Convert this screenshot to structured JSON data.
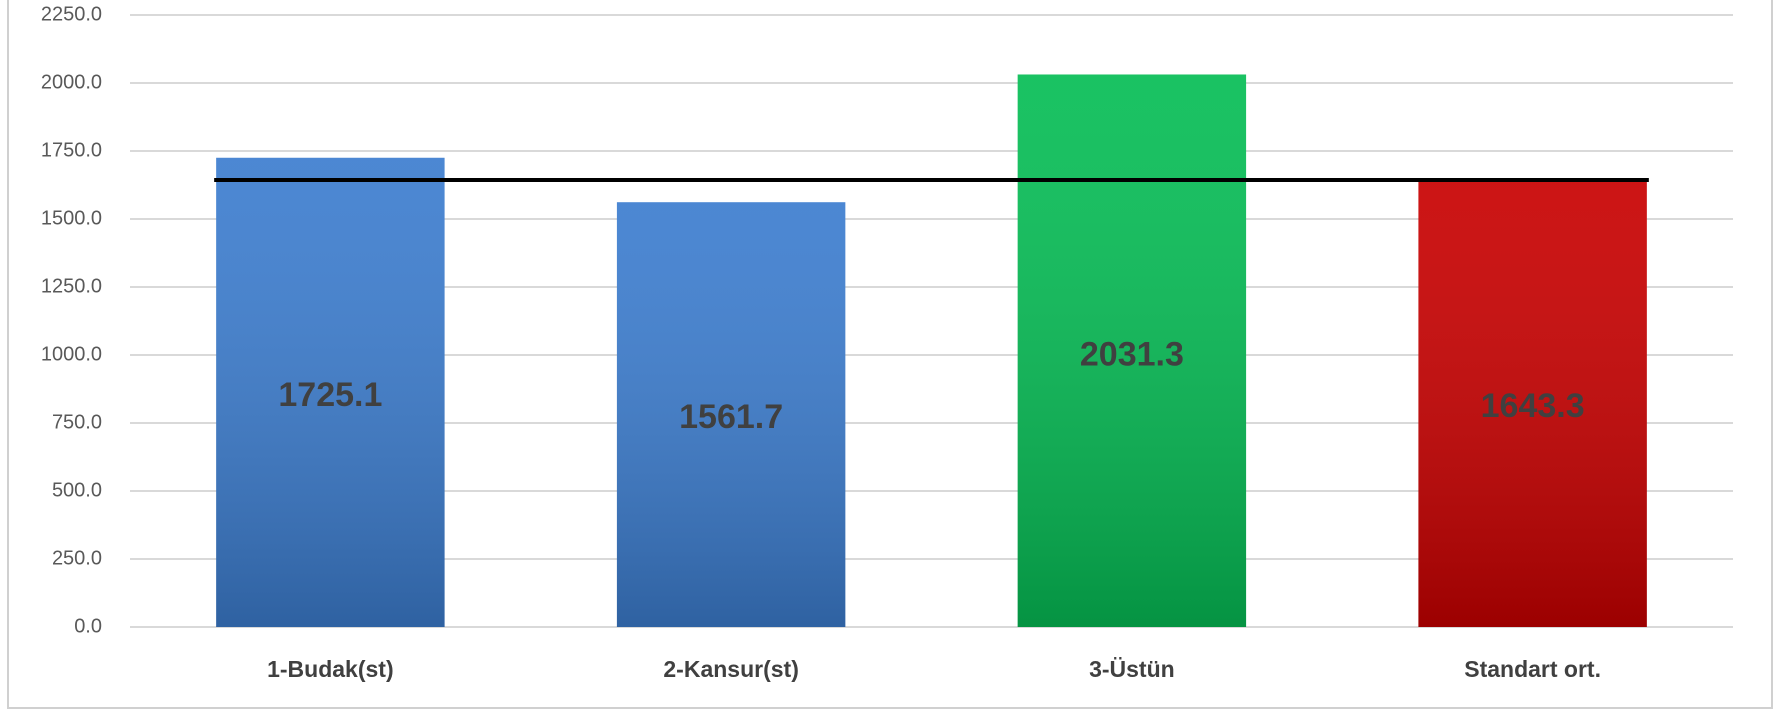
{
  "chart_data": {
    "type": "bar",
    "categories": [
      "1-Budak(st)",
      "2-Kansur(st)",
      "3-Üstün",
      "Standart ort."
    ],
    "values": [
      1725.1,
      1561.7,
      2031.3,
      1643.3
    ],
    "colors": [
      "#3c7dcf",
      "#3c7dcf",
      "#06bd55",
      "#c80000"
    ],
    "ylim": [
      0,
      2250
    ],
    "yticks": [
      {
        "value": 0,
        "label": "0.0"
      },
      {
        "value": 250,
        "label": "250.0"
      },
      {
        "value": 500,
        "label": "500.0"
      },
      {
        "value": 750,
        "label": "750.0"
      },
      {
        "value": 1000,
        "label": "1000.0"
      },
      {
        "value": 1250,
        "label": "1250.0"
      },
      {
        "value": 1500,
        "label": "1500.0"
      },
      {
        "value": 1750,
        "label": "1750.0"
      },
      {
        "value": 2000,
        "label": "2000.0"
      },
      {
        "value": 2250,
        "label": "2250.0"
      }
    ],
    "reference_line": {
      "value": 1643.3,
      "color": "#000000"
    },
    "grid": true
  }
}
